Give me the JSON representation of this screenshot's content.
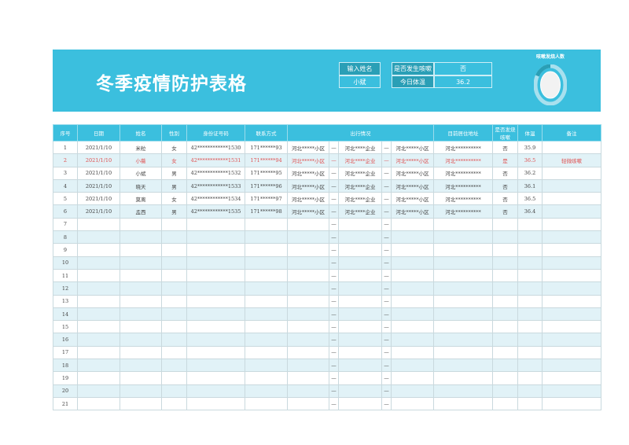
{
  "header": {
    "title": "冬季疫情防护表格",
    "name_label": "输入姓名",
    "name_value": "小斌",
    "cough_label": "是否发生咳嗽",
    "cough_value": "否",
    "temp_label": "今日体温",
    "temp_value": "36.2",
    "chart_title": "咳嗽发烧人数",
    "chart_fraction": 0.17,
    "accent": "#3bbfde"
  },
  "table": {
    "columns": [
      "序号",
      "日期",
      "姓名",
      "性别",
      "身份证号码",
      "联系方式",
      "出行情况",
      "目前居住地址",
      "是否发烧咳嗽",
      "体温",
      "备注"
    ],
    "rows": [
      {
        "no": "1",
        "date": "2021/1/10",
        "name": "米粒",
        "sex": "女",
        "id": "42************1530",
        "phone": "171******93",
        "t1": "河北*****小区",
        "d1": "—",
        "t2": "河北****企业",
        "d2": "—",
        "t3": "河北*****小区",
        "addr": "河北**********",
        "fever": "否",
        "temp": "35.9",
        "note": ""
      },
      {
        "no": "2",
        "date": "2021/1/10",
        "name": "小薇",
        "sex": "女",
        "id": "42************1531",
        "phone": "171******94",
        "t1": "河北*****小区",
        "d1": "—",
        "t2": "河北****企业",
        "d2": "—",
        "t3": "河北*****小区",
        "addr": "河北**********",
        "fever": "是",
        "temp": "36.5",
        "note": "轻微咳嗽"
      },
      {
        "no": "3",
        "date": "2021/1/10",
        "name": "小斌",
        "sex": "男",
        "id": "42************1532",
        "phone": "171******95",
        "t1": "河北*****小区",
        "d1": "—",
        "t2": "河北****企业",
        "d2": "—",
        "t3": "河北*****小区",
        "addr": "河北**********",
        "fever": "否",
        "temp": "36.2",
        "note": ""
      },
      {
        "no": "4",
        "date": "2021/1/10",
        "name": "晓天",
        "sex": "男",
        "id": "42************1533",
        "phone": "171******96",
        "t1": "河北*****小区",
        "d1": "—",
        "t2": "河北****企业",
        "d2": "—",
        "t3": "河北*****小区",
        "addr": "河北**********",
        "fever": "否",
        "temp": "36.1",
        "note": ""
      },
      {
        "no": "5",
        "date": "2021/1/10",
        "name": "莫离",
        "sex": "女",
        "id": "42************1534",
        "phone": "171******97",
        "t1": "河北*****小区",
        "d1": "—",
        "t2": "河北****企业",
        "d2": "—",
        "t3": "河北*****小区",
        "addr": "河北**********",
        "fever": "否",
        "temp": "36.5",
        "note": ""
      },
      {
        "no": "6",
        "date": "2021/1/10",
        "name": "孟西",
        "sex": "男",
        "id": "42************1535",
        "phone": "171******98",
        "t1": "河北*****小区",
        "d1": "—",
        "t2": "河北****企业",
        "d2": "—",
        "t3": "河北*****小区",
        "addr": "河北**********",
        "fever": "否",
        "temp": "36.4",
        "note": ""
      },
      {
        "no": "7",
        "d1": "—",
        "d2": "—"
      },
      {
        "no": "8",
        "d1": "—",
        "d2": "—"
      },
      {
        "no": "9",
        "d1": "—",
        "d2": "—"
      },
      {
        "no": "10",
        "d1": "—",
        "d2": "—"
      },
      {
        "no": "11",
        "d1": "—",
        "d2": "—"
      },
      {
        "no": "12",
        "d1": "—",
        "d2": "—"
      },
      {
        "no": "13",
        "d1": "—",
        "d2": "—"
      },
      {
        "no": "14",
        "d1": "—",
        "d2": "—"
      },
      {
        "no": "15",
        "d1": "—",
        "d2": "—"
      },
      {
        "no": "16",
        "d1": "—",
        "d2": "—"
      },
      {
        "no": "17",
        "d1": "—",
        "d2": "—"
      },
      {
        "no": "18",
        "d1": "—",
        "d2": "—"
      },
      {
        "no": "19",
        "d1": "—",
        "d2": "—"
      },
      {
        "no": "20",
        "d1": "—",
        "d2": "—"
      },
      {
        "no": "21",
        "d1": "—",
        "d2": "—"
      }
    ]
  }
}
